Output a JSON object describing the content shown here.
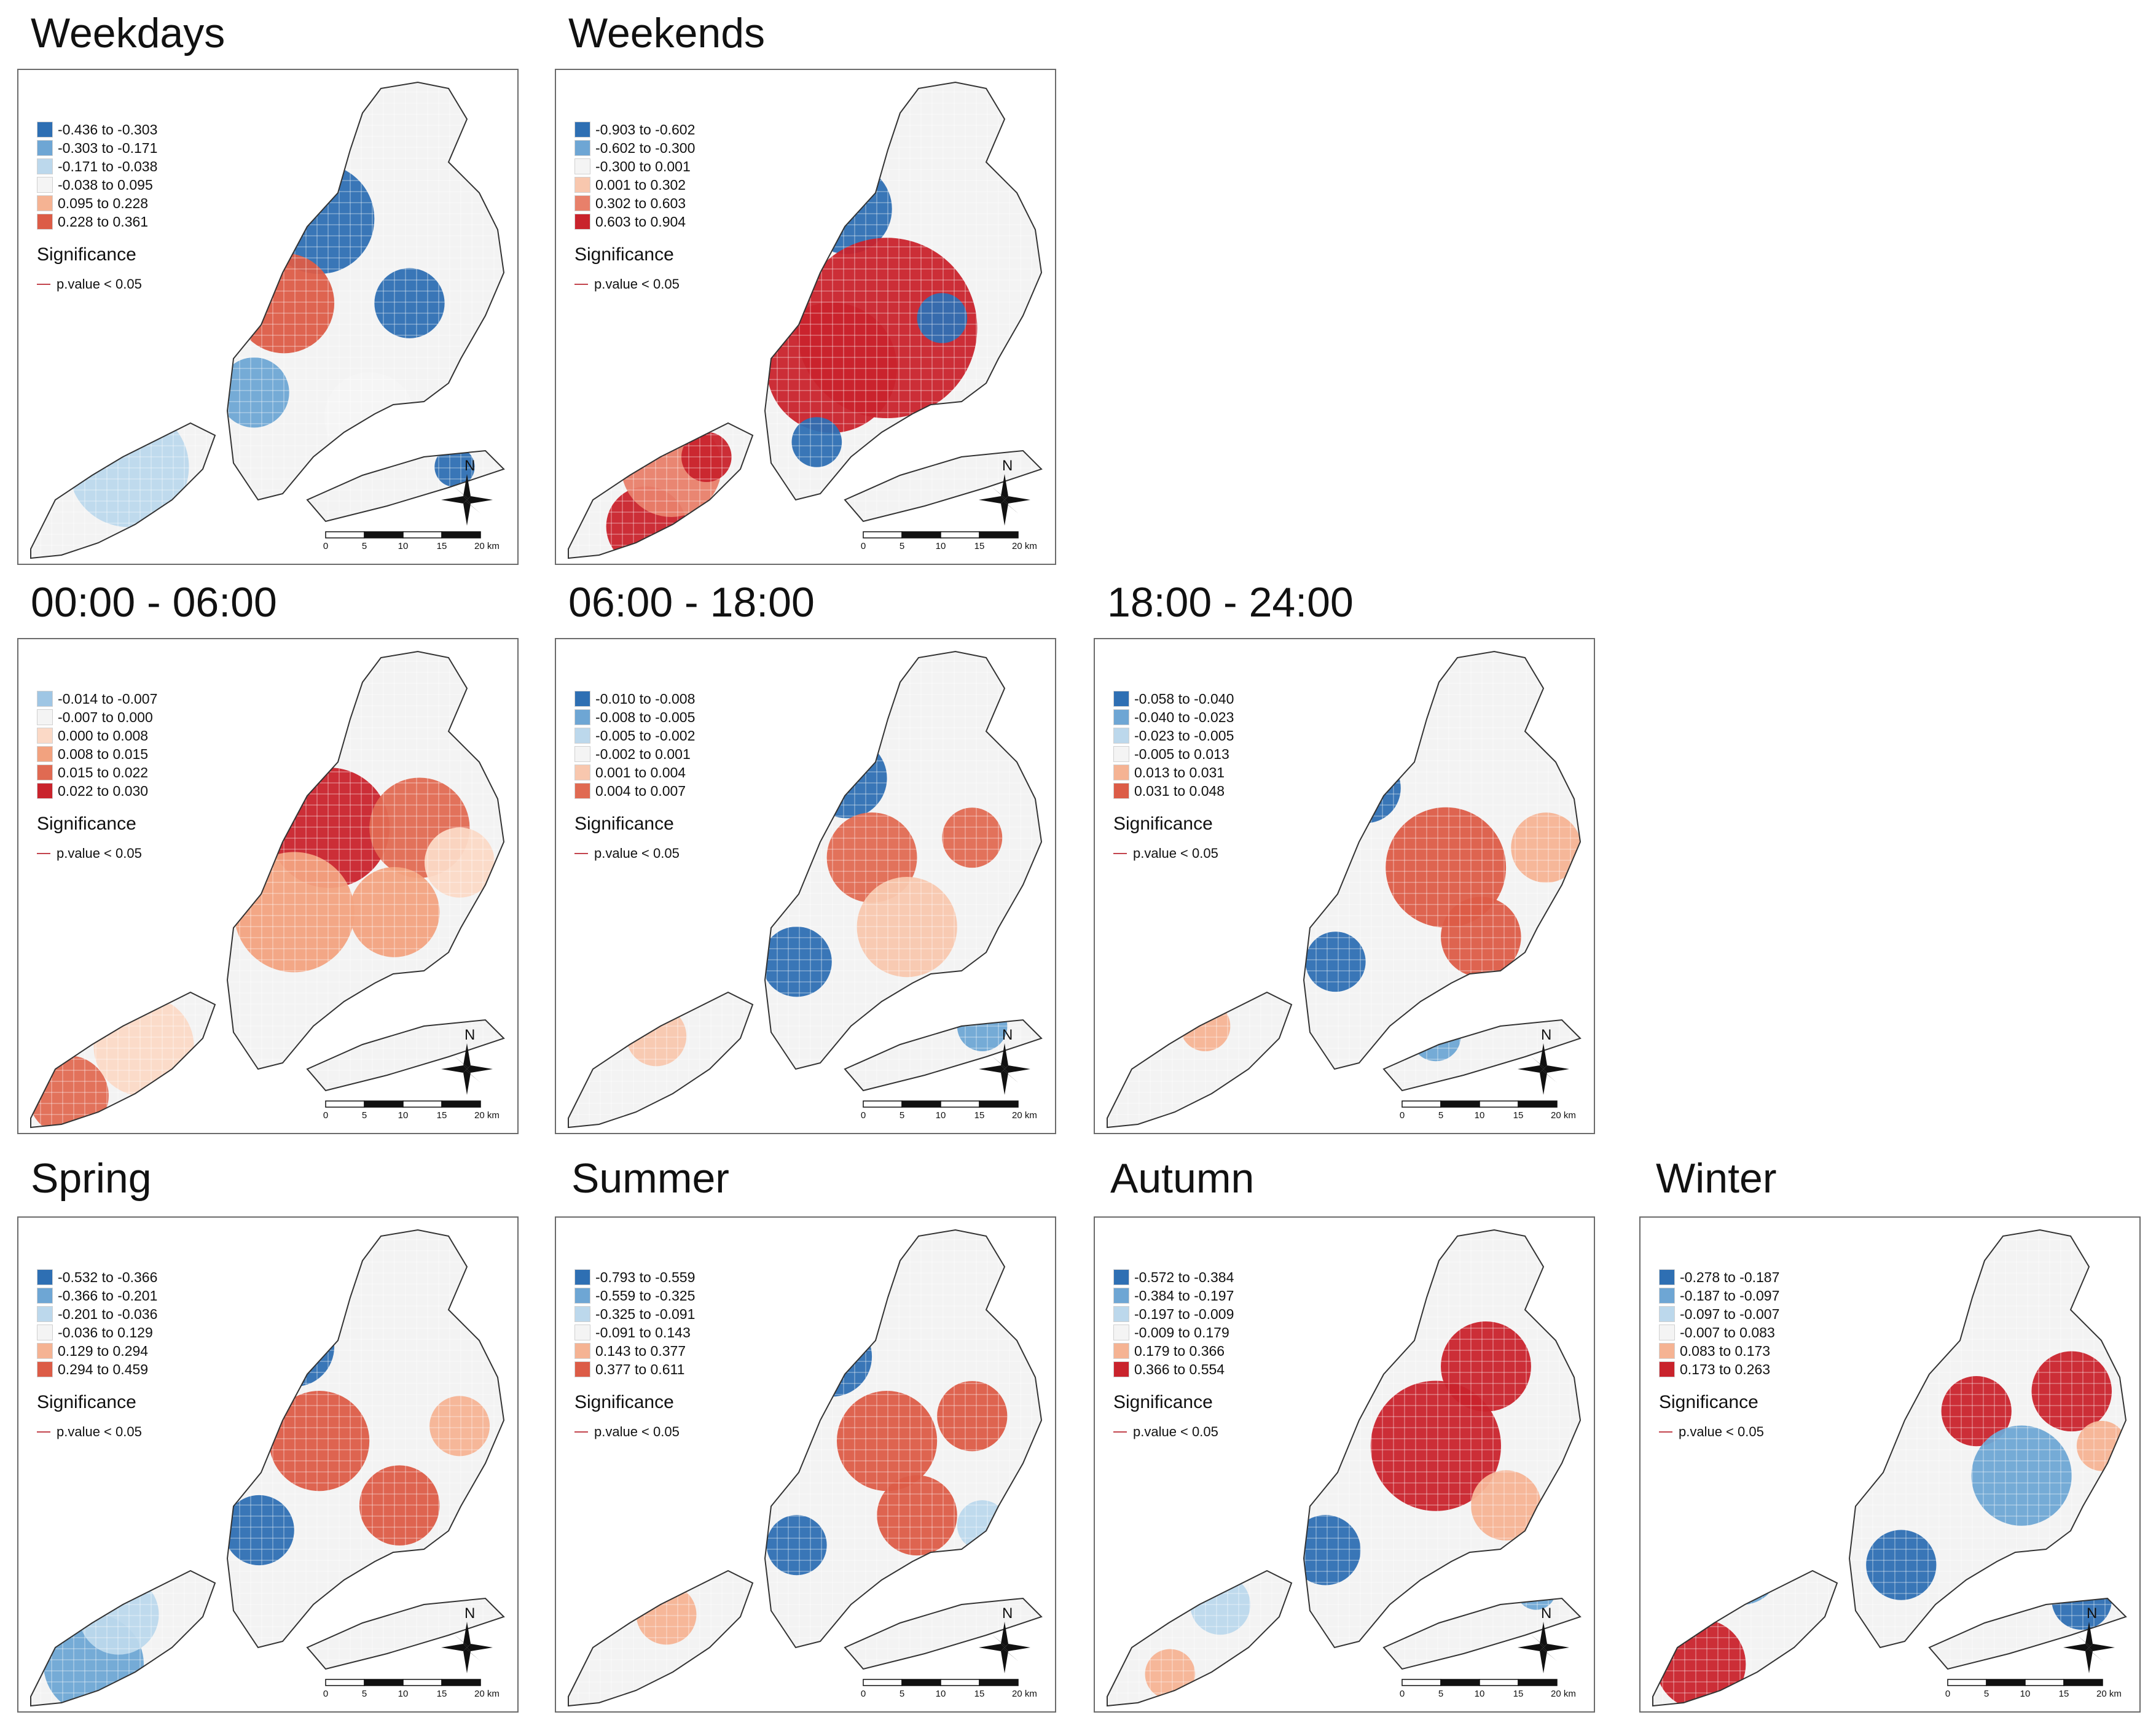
{
  "significance": {
    "title": "Significance",
    "line_label": "p.value < 0.05",
    "line_color": "#c2434c"
  },
  "scale_bar": {
    "ticks": [
      "0",
      "5",
      "10",
      "15",
      "20 km"
    ]
  },
  "north_label": "N",
  "panels": [
    {
      "title": "Weekdays",
      "legend": [
        {
          "label": "-0.436 to -0.303",
          "color": "#2e6fb3"
        },
        {
          "label": "-0.303 to -0.171",
          "color": "#6ea6d4"
        },
        {
          "label": "-0.171 to -0.038",
          "color": "#bcd8ec"
        },
        {
          "label": "-0.038 to 0.095",
          "color": "#f4f4f4"
        },
        {
          "label": "0.095 to 0.228",
          "color": "#f5b393"
        },
        {
          "label": "0.228 to 0.361",
          "color": "#dc5c47"
        }
      ]
    },
    {
      "title": "Weekends",
      "legend": [
        {
          "label": "-0.903 to -0.602",
          "color": "#2e6fb3"
        },
        {
          "label": "-0.602 to -0.300",
          "color": "#6ea6d4"
        },
        {
          "label": "-0.300 to 0.001",
          "color": "#f4f4f4"
        },
        {
          "label": "0.001 to 0.302",
          "color": "#f8c7ae"
        },
        {
          "label": "0.302 to 0.603",
          "color": "#e8806a"
        },
        {
          "label": "0.603 to 0.904",
          "color": "#c9232c"
        }
      ]
    },
    {
      "title": "00:00 - 06:00",
      "legend": [
        {
          "label": "-0.014 to -0.007",
          "color": "#9fc6e4"
        },
        {
          "label": "-0.007 to 0.000",
          "color": "#f4f4f4"
        },
        {
          "label": "0.000 to 0.008",
          "color": "#fbd9c6"
        },
        {
          "label": "0.008 to 0.015",
          "color": "#f2a27f"
        },
        {
          "label": "0.015 to 0.022",
          "color": "#e06a52"
        },
        {
          "label": "0.022 to 0.030",
          "color": "#c9232c"
        }
      ]
    },
    {
      "title": "06:00 - 18:00",
      "legend": [
        {
          "label": "-0.010 to -0.008",
          "color": "#2e6fb3"
        },
        {
          "label": "-0.008 to -0.005",
          "color": "#6ea6d4"
        },
        {
          "label": "-0.005 to -0.002",
          "color": "#bcd8ec"
        },
        {
          "label": "-0.002 to 0.001",
          "color": "#f4f4f4"
        },
        {
          "label": "0.001 to 0.004",
          "color": "#f8c7ae"
        },
        {
          "label": "0.004 to 0.007",
          "color": "#e06a52"
        }
      ]
    },
    {
      "title": "18:00 - 24:00",
      "legend": [
        {
          "label": "-0.058 to -0.040",
          "color": "#2e6fb3"
        },
        {
          "label": "-0.040 to -0.023",
          "color": "#6ea6d4"
        },
        {
          "label": "-0.023 to -0.005",
          "color": "#bcd8ec"
        },
        {
          "label": "-0.005 to 0.013",
          "color": "#f4f4f4"
        },
        {
          "label": "0.013 to 0.031",
          "color": "#f5b393"
        },
        {
          "label": "0.031 to 0.048",
          "color": "#dc5c47"
        }
      ]
    },
    {
      "title": "Spring",
      "legend": [
        {
          "label": "-0.532 to -0.366",
          "color": "#2e6fb3"
        },
        {
          "label": "-0.366 to -0.201",
          "color": "#6ea6d4"
        },
        {
          "label": "-0.201 to -0.036",
          "color": "#bcd8ec"
        },
        {
          "label": "-0.036 to 0.129",
          "color": "#f4f4f4"
        },
        {
          "label": "0.129 to 0.294",
          "color": "#f5b393"
        },
        {
          "label": "0.294 to 0.459",
          "color": "#dc5c47"
        }
      ]
    },
    {
      "title": "Summer",
      "legend": [
        {
          "label": "-0.793 to -0.559",
          "color": "#2e6fb3"
        },
        {
          "label": "-0.559 to -0.325",
          "color": "#6ea6d4"
        },
        {
          "label": "-0.325 to -0.091",
          "color": "#bcd8ec"
        },
        {
          "label": "-0.091 to 0.143",
          "color": "#f4f4f4"
        },
        {
          "label": "0.143 to 0.377",
          "color": "#f5b393"
        },
        {
          "label": "0.377 to 0.611",
          "color": "#dc5c47"
        }
      ]
    },
    {
      "title": "Autumn",
      "legend": [
        {
          "label": "-0.572 to -0.384",
          "color": "#2e6fb3"
        },
        {
          "label": "-0.384 to -0.197",
          "color": "#6ea6d4"
        },
        {
          "label": "-0.197 to -0.009",
          "color": "#bcd8ec"
        },
        {
          "label": "-0.009 to 0.179",
          "color": "#f4f4f4"
        },
        {
          "label": "0.179 to 0.366",
          "color": "#f5b393"
        },
        {
          "label": "0.366 to 0.554",
          "color": "#c9232c"
        }
      ]
    },
    {
      "title": "Winter",
      "legend": [
        {
          "label": "-0.278 to -0.187",
          "color": "#2e6fb3"
        },
        {
          "label": "-0.187 to -0.097",
          "color": "#6ea6d4"
        },
        {
          "label": "-0.097 to -0.007",
          "color": "#bcd8ec"
        },
        {
          "label": "-0.007 to 0.083",
          "color": "#f4f4f4"
        },
        {
          "label": "0.083 to 0.173",
          "color": "#f5b393"
        },
        {
          "label": "0.173 to 0.263",
          "color": "#c9232c"
        }
      ]
    }
  ]
}
